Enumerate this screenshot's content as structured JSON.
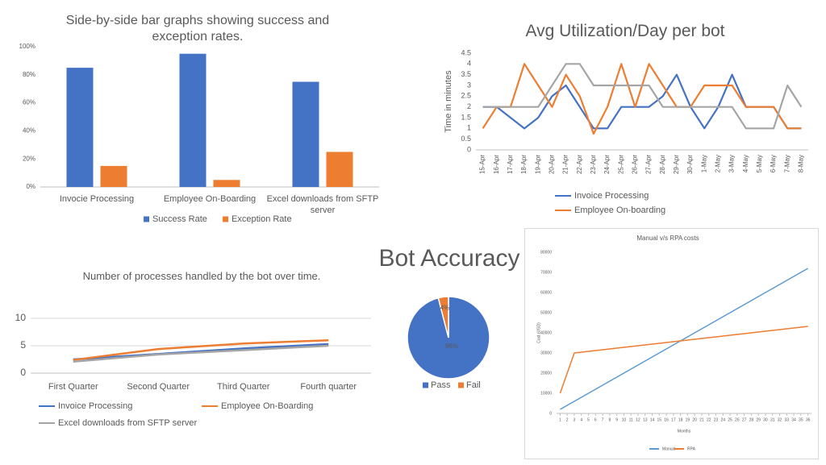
{
  "chart_data": [
    {
      "type": "bar",
      "title": "Side-by-side bar graphs showing success and exception rates.",
      "categories": [
        "Invocie Processing",
        "Employee On-Boarding",
        "Excel downloads from SFTP server"
      ],
      "series": [
        {
          "name": "Success Rate",
          "color": "#4472c4",
          "values": [
            85,
            95,
            75
          ]
        },
        {
          "name": "Exception Rate",
          "color": "#ed7d31",
          "values": [
            15,
            5,
            25
          ]
        }
      ],
      "ylim": [
        0,
        100
      ],
      "yticks": [
        {
          "value": 0,
          "label": "0%"
        },
        {
          "value": 20,
          "label": "20%"
        },
        {
          "value": 40,
          "label": "40%"
        },
        {
          "value": 60,
          "label": "60%"
        },
        {
          "value": 80,
          "label": "80%"
        },
        {
          "value": 100,
          "label": "100%"
        }
      ],
      "grid": false
    },
    {
      "type": "line",
      "title": "Avg Utilization/Day per bot",
      "y_label": "Time in minutes",
      "categories": [
        "15-Apr",
        "16-Apr",
        "17-Apr",
        "18-Apr",
        "19-Apr",
        "20-Apr",
        "21-Apr",
        "22-Apr",
        "23-Apr",
        "24-Apr",
        "25-Apr",
        "26-Apr",
        "27-Apr",
        "28-Apr",
        "29-Apr",
        "30-Apr",
        "1-May",
        "2-May",
        "3-May",
        "4-May",
        "5-May",
        "6-May",
        "7-May",
        "8-May"
      ],
      "series": [
        {
          "name": "Invoice Processing",
          "color": "#4472c4",
          "values": [
            2,
            2,
            1.5,
            1,
            1.5,
            2.5,
            3,
            2,
            1,
            1,
            2,
            2,
            2,
            2.5,
            3.5,
            2,
            1,
            2,
            3.5,
            2,
            2,
            2,
            1,
            1
          ]
        },
        {
          "name": "Employee On-boarding",
          "color": "#ed7d31",
          "values": [
            1,
            2,
            2,
            4,
            3,
            2,
            3.5,
            2.5,
            0.75,
            2,
            4,
            2,
            4,
            3,
            2,
            2,
            3,
            3,
            3,
            2,
            2,
            2,
            1,
            1
          ]
        },
        {
          "color": "#a5a5a5",
          "values": [
            2,
            2,
            2,
            2,
            2,
            3,
            4,
            4,
            3,
            3,
            3,
            3,
            3,
            2,
            2,
            2,
            2,
            2,
            2,
            1,
            1,
            1,
            3,
            2
          ]
        }
      ],
      "ylim": [
        0,
        4.5
      ],
      "yticks": [
        0,
        0.5,
        1,
        1.5,
        2,
        2.5,
        3,
        3.5,
        4,
        4.5
      ],
      "grid": false
    },
    {
      "type": "pie",
      "title": "Bot Accuracy",
      "categories": [
        "Pass",
        "Fail"
      ],
      "values": [
        96,
        4
      ],
      "value_labels": [
        "96%",
        "4%"
      ],
      "colors": [
        "#4472c4",
        "#ed7d31"
      ]
    },
    {
      "type": "line",
      "title": "Number of processes handled by the bot over time.",
      "categories": [
        "First Quarter",
        "Second Quarter",
        "Third Quarter",
        "Fourth quarter"
      ],
      "series": [
        {
          "name": "Invoice Processing",
          "color": "#4472c4",
          "values": [
            2.5,
            3.5,
            4.5,
            5.3
          ]
        },
        {
          "name": "Employee On-Boarding",
          "color": "#ed7d31",
          "values": [
            2.4,
            4.4,
            5.4,
            6
          ]
        },
        {
          "name": "Excel downloads from SFTP server",
          "color": "#a5a5a5",
          "values": [
            2.1,
            3.4,
            4.2,
            5
          ]
        }
      ],
      "ylim": [
        0,
        10
      ],
      "yticks": [
        0,
        5,
        10
      ],
      "grid": true
    },
    {
      "type": "line",
      "title": "Manual v/s RPA costs",
      "x_label": "Months",
      "y_label": "Cost (USD)",
      "x": [
        1,
        2,
        3,
        4,
        5,
        6,
        7,
        8,
        9,
        10,
        11,
        12,
        13,
        14,
        15,
        16,
        17,
        18,
        19,
        20,
        21,
        22,
        23,
        24,
        25,
        26,
        27,
        28,
        29,
        30,
        31,
        32,
        33,
        34,
        35,
        36
      ],
      "series": [
        {
          "name": "Manual",
          "color": "#5b9bd5",
          "values": [
            2000,
            4000,
            6000,
            8000,
            10000,
            12000,
            14000,
            16000,
            18000,
            20000,
            22000,
            24000,
            26000,
            28000,
            30000,
            32000,
            34000,
            36000,
            38000,
            40000,
            42000,
            44000,
            46000,
            48000,
            50000,
            52000,
            54000,
            56000,
            58000,
            60000,
            62000,
            64000,
            66000,
            68000,
            70000,
            72000
          ]
        },
        {
          "name": "RPA",
          "color": "#ed7d31",
          "values": [
            10000,
            20000,
            30000,
            30400,
            30800,
            31200,
            31600,
            32000,
            32400,
            32800,
            33200,
            33600,
            34000,
            34400,
            34800,
            35200,
            35600,
            36000,
            36400,
            36800,
            37200,
            37600,
            38000,
            38400,
            38800,
            39200,
            39600,
            40000,
            40400,
            40800,
            41200,
            41600,
            42000,
            42400,
            42800,
            43200
          ]
        }
      ],
      "xlim": [
        0.5,
        36.5
      ],
      "xticks": [
        1,
        2,
        3,
        4,
        5,
        6,
        7,
        8,
        9,
        10,
        11,
        12,
        13,
        14,
        15,
        16,
        17,
        18,
        19,
        20,
        21,
        22,
        23,
        24,
        25,
        26,
        27,
        28,
        29,
        30,
        31,
        32,
        33,
        34,
        35,
        36
      ],
      "ylim": [
        0,
        80000
      ],
      "yticks": [
        0,
        10000,
        20000,
        30000,
        40000,
        50000,
        60000,
        70000,
        80000
      ],
      "grid": false
    }
  ]
}
